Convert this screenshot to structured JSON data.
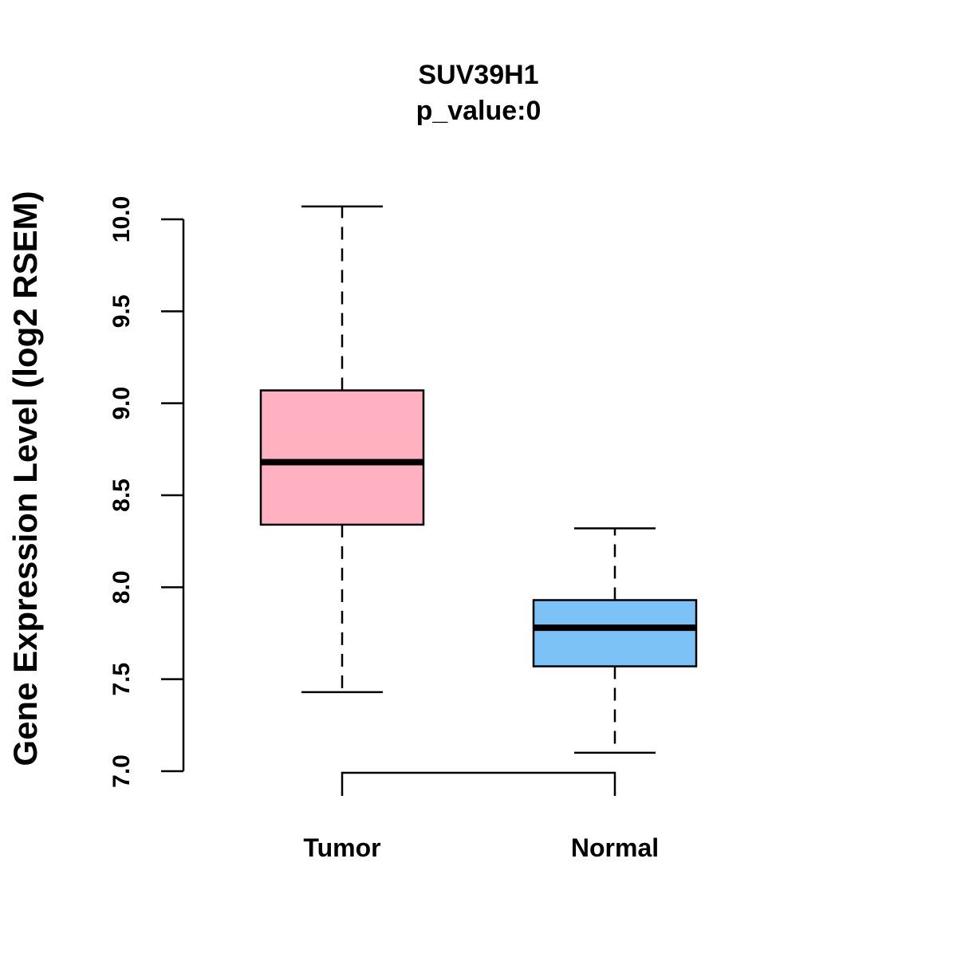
{
  "chart_data": {
    "type": "boxplot",
    "title": "SUV39H1",
    "subtitle": "p_value:0",
    "ylabel": "Gene Expression Level (log2 RSEM)",
    "xlabel": "",
    "ylim": [
      7.0,
      10.0
    ],
    "yticks": [
      7.0,
      7.5,
      8.0,
      8.5,
      9.0,
      9.5,
      10.0
    ],
    "ytick_labels": [
      "7.0",
      "7.5",
      "8.0",
      "8.5",
      "9.0",
      "9.5",
      "10.0"
    ],
    "grid": false,
    "categories": [
      "Tumor",
      "Normal"
    ],
    "boxes": [
      {
        "name": "Tumor",
        "whisker_low": 7.43,
        "q1": 8.34,
        "median": 8.68,
        "q3": 9.07,
        "whisker_high": 10.07,
        "color": "#FFB1C2"
      },
      {
        "name": "Normal",
        "whisker_low": 7.1,
        "q1": 7.57,
        "median": 7.78,
        "q3": 7.93,
        "whisker_high": 8.32,
        "color": "#7DC2F7"
      }
    ],
    "significance_bracket": {
      "from": "Tumor",
      "to": "Normal",
      "label": ""
    }
  }
}
